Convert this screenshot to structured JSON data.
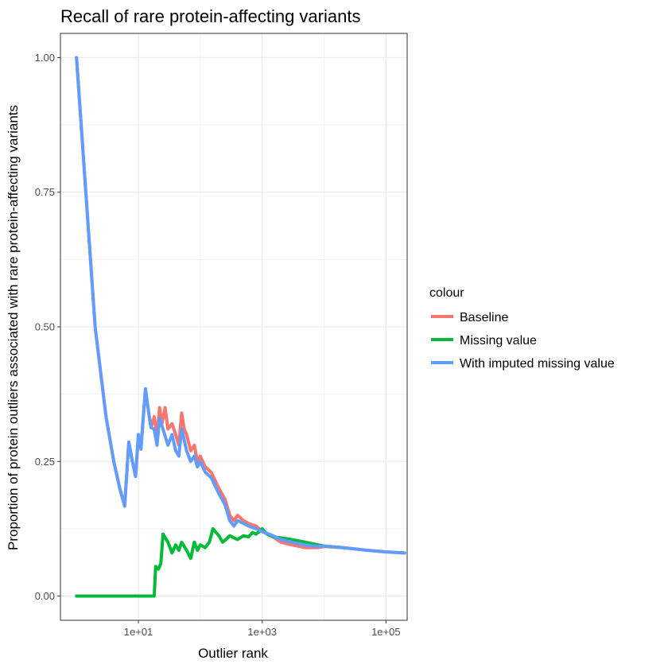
{
  "chart_data": {
    "type": "line",
    "title": "Recall of rare protein-affecting variants",
    "xlabel": "Outlier rank",
    "ylabel": "Proportion of protein outliers associated with rare protein-affecting variants",
    "x_scale": "log10",
    "xlim": [
      0.55,
      220000
    ],
    "ylim": [
      -0.045,
      1.045
    ],
    "x_ticks": [
      10,
      1000,
      100000
    ],
    "x_tick_labels": [
      "1e+01",
      "1e+03",
      "1e+05"
    ],
    "y_ticks": [
      0,
      0.25,
      0.5,
      0.75,
      1.0
    ],
    "y_tick_labels": [
      "0.00",
      "0.25",
      "0.50",
      "0.75",
      "1.00"
    ],
    "grid": true,
    "legend": {
      "title": "colour",
      "position": "right",
      "entries": [
        "Baseline",
        "Missing value",
        "With imputed missing value"
      ]
    },
    "series": [
      {
        "name": "Baseline",
        "color": "#F8766D",
        "points": [
          [
            1,
            1.0
          ],
          [
            2,
            0.5
          ],
          [
            3,
            0.333
          ],
          [
            4,
            0.25
          ],
          [
            5,
            0.2
          ],
          [
            6,
            0.167
          ],
          [
            7,
            0.286
          ],
          [
            8,
            0.25
          ],
          [
            9,
            0.222
          ],
          [
            10,
            0.3
          ],
          [
            11,
            0.273
          ],
          [
            12,
            0.333
          ],
          [
            13,
            0.385
          ],
          [
            14,
            0.357
          ],
          [
            15,
            0.333
          ],
          [
            16,
            0.313
          ],
          [
            18,
            0.333
          ],
          [
            20,
            0.3
          ],
          [
            22,
            0.35
          ],
          [
            24,
            0.32
          ],
          [
            27,
            0.35
          ],
          [
            30,
            0.31
          ],
          [
            35,
            0.32
          ],
          [
            40,
            0.3
          ],
          [
            45,
            0.28
          ],
          [
            50,
            0.34
          ],
          [
            55,
            0.31
          ],
          [
            60,
            0.3
          ],
          [
            70,
            0.27
          ],
          [
            80,
            0.28
          ],
          [
            90,
            0.25
          ],
          [
            100,
            0.26
          ],
          [
            120,
            0.24
          ],
          [
            150,
            0.23
          ],
          [
            200,
            0.2
          ],
          [
            250,
            0.18
          ],
          [
            300,
            0.15
          ],
          [
            350,
            0.14
          ],
          [
            400,
            0.15
          ],
          [
            500,
            0.14
          ],
          [
            600,
            0.135
          ],
          [
            800,
            0.13
          ],
          [
            1000,
            0.12
          ],
          [
            1500,
            0.11
          ],
          [
            2000,
            0.1
          ],
          [
            3000,
            0.095
          ],
          [
            5000,
            0.09
          ],
          [
            8000,
            0.09
          ],
          [
            10000,
            0.092
          ],
          [
            20000,
            0.09
          ],
          [
            50000,
            0.085
          ],
          [
            100000,
            0.082
          ],
          [
            200000,
            0.08
          ]
        ]
      },
      {
        "name": "Missing value",
        "color": "#00BA38",
        "points": [
          [
            1,
            0.0
          ],
          [
            18,
            0.0
          ],
          [
            19,
            0.055
          ],
          [
            21,
            0.05
          ],
          [
            23,
            0.06
          ],
          [
            25,
            0.115
          ],
          [
            30,
            0.1
          ],
          [
            35,
            0.08
          ],
          [
            40,
            0.095
          ],
          [
            45,
            0.085
          ],
          [
            50,
            0.1
          ],
          [
            60,
            0.085
          ],
          [
            70,
            0.07
          ],
          [
            80,
            0.1
          ],
          [
            90,
            0.085
          ],
          [
            100,
            0.095
          ],
          [
            120,
            0.09
          ],
          [
            140,
            0.1
          ],
          [
            160,
            0.125
          ],
          [
            180,
            0.118
          ],
          [
            200,
            0.112
          ],
          [
            230,
            0.1
          ],
          [
            260,
            0.105
          ],
          [
            300,
            0.112
          ],
          [
            350,
            0.108
          ],
          [
            400,
            0.105
          ],
          [
            500,
            0.112
          ],
          [
            600,
            0.11
          ],
          [
            700,
            0.118
          ],
          [
            800,
            0.115
          ],
          [
            1000,
            0.125
          ],
          [
            1200,
            0.115
          ],
          [
            1500,
            0.11
          ],
          [
            2000,
            0.108
          ],
          [
            3000,
            0.105
          ],
          [
            5000,
            0.1
          ],
          [
            8000,
            0.095
          ],
          [
            10000,
            0.093
          ],
          [
            20000,
            0.09
          ]
        ]
      },
      {
        "name": "With imputed missing value",
        "color": "#619CFF",
        "points": [
          [
            1,
            1.0
          ],
          [
            2,
            0.5
          ],
          [
            3,
            0.333
          ],
          [
            4,
            0.25
          ],
          [
            5,
            0.2
          ],
          [
            6,
            0.167
          ],
          [
            7,
            0.286
          ],
          [
            8,
            0.25
          ],
          [
            9,
            0.222
          ],
          [
            10,
            0.3
          ],
          [
            11,
            0.273
          ],
          [
            12,
            0.333
          ],
          [
            13,
            0.385
          ],
          [
            14,
            0.357
          ],
          [
            15,
            0.333
          ],
          [
            16,
            0.313
          ],
          [
            18,
            0.31
          ],
          [
            20,
            0.28
          ],
          [
            22,
            0.33
          ],
          [
            25,
            0.31
          ],
          [
            30,
            0.28
          ],
          [
            35,
            0.3
          ],
          [
            40,
            0.27
          ],
          [
            45,
            0.26
          ],
          [
            50,
            0.31
          ],
          [
            55,
            0.29
          ],
          [
            60,
            0.27
          ],
          [
            70,
            0.25
          ],
          [
            80,
            0.26
          ],
          [
            90,
            0.24
          ],
          [
            100,
            0.25
          ],
          [
            120,
            0.23
          ],
          [
            150,
            0.22
          ],
          [
            200,
            0.19
          ],
          [
            250,
            0.17
          ],
          [
            300,
            0.14
          ],
          [
            350,
            0.13
          ],
          [
            400,
            0.14
          ],
          [
            500,
            0.135
          ],
          [
            600,
            0.13
          ],
          [
            800,
            0.125
          ],
          [
            1000,
            0.12
          ],
          [
            1500,
            0.112
          ],
          [
            2000,
            0.105
          ],
          [
            3000,
            0.1
          ],
          [
            5000,
            0.095
          ],
          [
            8000,
            0.092
          ],
          [
            10000,
            0.093
          ],
          [
            20000,
            0.09
          ],
          [
            50000,
            0.085
          ],
          [
            100000,
            0.082
          ],
          [
            200000,
            0.08
          ]
        ]
      }
    ]
  }
}
